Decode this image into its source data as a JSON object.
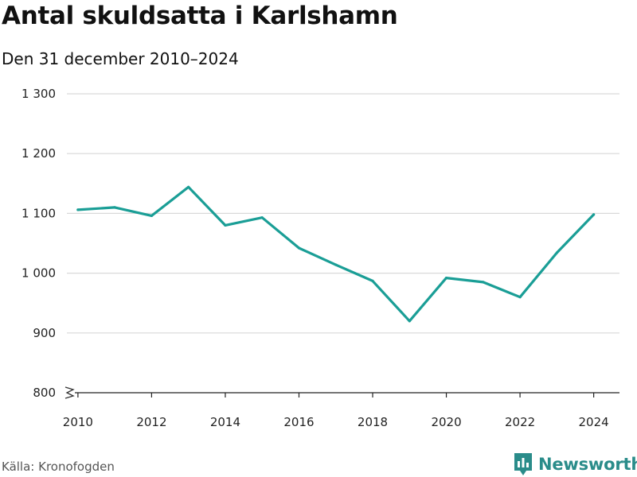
{
  "title": "Antal skuldsatta i Karlshamn",
  "subtitle": "Den 31 december 2010–2024",
  "source": "Källa: Kronofogden",
  "brand": {
    "name": "Newsworthy",
    "icon": "bar-chart-icon",
    "color": "#2a8c8a"
  },
  "chart_data": {
    "type": "line",
    "title": "Antal skuldsatta i Karlshamn",
    "subtitle": "Den 31 december 2010–2024",
    "xlabel": "",
    "ylabel": "",
    "x": [
      2010,
      2011,
      2012,
      2013,
      2014,
      2015,
      2016,
      2017,
      2018,
      2019,
      2020,
      2021,
      2022,
      2023,
      2024
    ],
    "series": [
      {
        "name": "Antal skuldsatta",
        "color": "#1a9e96",
        "values": [
          1106,
          1110,
          1096,
          1144,
          1080,
          1093,
          1042,
          1014,
          987,
          920,
          992,
          985,
          960,
          1034,
          1098
        ]
      }
    ],
    "xlim": [
      2009.7,
      2024.7
    ],
    "ylim": [
      800,
      1300
    ],
    "x_ticks": [
      2010,
      2012,
      2014,
      2016,
      2018,
      2020,
      2022,
      2024
    ],
    "x_tick_labels": [
      "2010",
      "2012",
      "2014",
      "2016",
      "2018",
      "2020",
      "2022",
      "2024"
    ],
    "y_ticks": [
      800,
      900,
      1000,
      1100,
      1200,
      1300
    ],
    "y_tick_labels": [
      "800",
      "900",
      "1 000",
      "1 100",
      "1 200",
      "1 300"
    ],
    "grid": true,
    "axis_break": true,
    "legend": "none"
  }
}
